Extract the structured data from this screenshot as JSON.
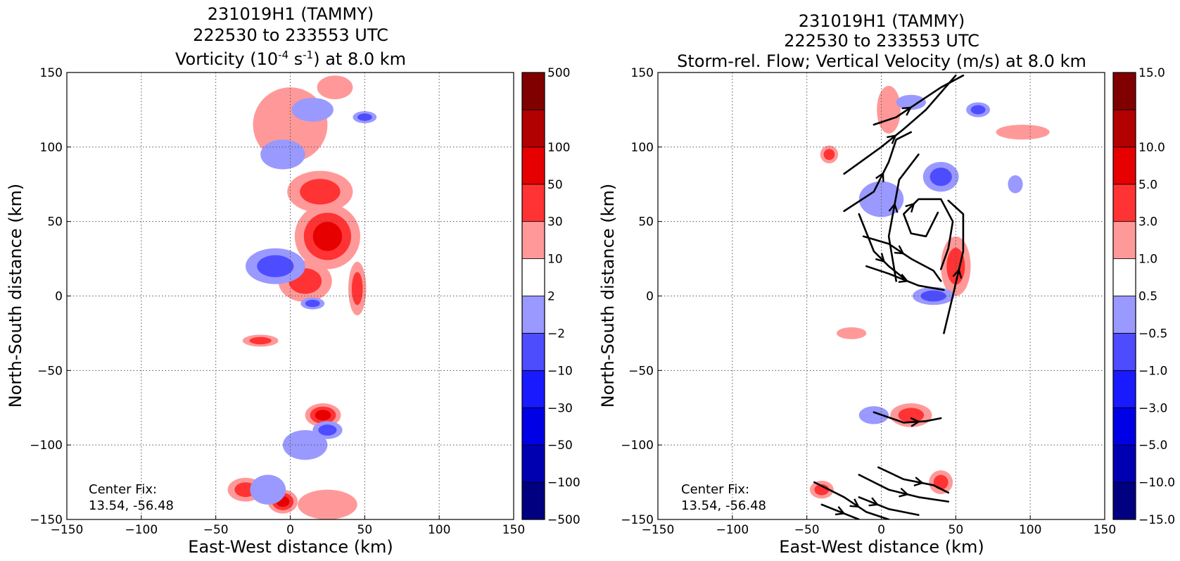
{
  "chart_data": [
    {
      "type": "heatmap",
      "title_lines": [
        "231019H1 (TAMMY)",
        "222530 to 233553 UTC"
      ],
      "title_line3": {
        "prefix": "Vorticity (10",
        "exp1": "-4",
        "mid": " s",
        "exp2": "-1",
        "suffix": ") at 8.0 km"
      },
      "xlabel": "East-West distance (km)",
      "ylabel": "North-South distance (km)",
      "xlim": [
        -150,
        150
      ],
      "ylim": [
        -150,
        150
      ],
      "xticks": [
        "−150",
        "−100",
        "−50",
        "0",
        "50",
        "100",
        "150"
      ],
      "yticks": [
        "−150",
        "−100",
        "−50",
        "0",
        "50",
        "100",
        "150"
      ],
      "grid": true,
      "annotation": [
        "Center Fix:",
        "13.54, -56.48"
      ],
      "colorbar": {
        "boundaries": [
          "−500",
          "−100",
          "−50",
          "−30",
          "−10",
          "−2",
          "2",
          "10",
          "30",
          "50",
          "100",
          "500"
        ],
        "colors": [
          "#000080",
          "#0000b3",
          "#0000e6",
          "#1a1aff",
          "#4d4dff",
          "#9999ff",
          "#ffffff",
          "#ff9999",
          "#ff3333",
          "#e60000",
          "#b30000",
          "#800000"
        ]
      },
      "field": {
        "positive_regions": [
          {
            "x": 25,
            "y": 40,
            "rx": 22,
            "ry": 22,
            "level": 3
          },
          {
            "x": 10,
            "y": 10,
            "rx": 18,
            "ry": 14,
            "level": 2
          },
          {
            "x": 20,
            "y": 70,
            "rx": 22,
            "ry": 14,
            "level": 2
          },
          {
            "x": 0,
            "y": 115,
            "rx": 25,
            "ry": 25,
            "level": 1
          },
          {
            "x": 30,
            "y": 140,
            "rx": 12,
            "ry": 8,
            "level": 1
          },
          {
            "x": 22,
            "y": -80,
            "rx": 12,
            "ry": 8,
            "level": 3
          },
          {
            "x": -20,
            "y": -30,
            "rx": 12,
            "ry": 4,
            "level": 2
          },
          {
            "x": -5,
            "y": -138,
            "rx": 10,
            "ry": 8,
            "level": 3
          },
          {
            "x": -30,
            "y": -130,
            "rx": 12,
            "ry": 8,
            "level": 2
          },
          {
            "x": 25,
            "y": -140,
            "rx": 20,
            "ry": 10,
            "level": 1
          },
          {
            "x": 45,
            "y": 5,
            "rx": 6,
            "ry": 18,
            "level": 2
          }
        ],
        "negative_regions": [
          {
            "x": -10,
            "y": 20,
            "rx": 20,
            "ry": 12,
            "level": 2
          },
          {
            "x": 15,
            "y": 125,
            "rx": 14,
            "ry": 8,
            "level": 1
          },
          {
            "x": -5,
            "y": 95,
            "rx": 15,
            "ry": 10,
            "level": 1
          },
          {
            "x": 50,
            "y": 120,
            "rx": 8,
            "ry": 4,
            "level": 2
          },
          {
            "x": 25,
            "y": -90,
            "rx": 10,
            "ry": 6,
            "level": 2
          },
          {
            "x": 10,
            "y": -100,
            "rx": 15,
            "ry": 10,
            "level": 1
          },
          {
            "x": -15,
            "y": -130,
            "rx": 12,
            "ry": 10,
            "level": 1
          },
          {
            "x": 15,
            "y": -5,
            "rx": 8,
            "ry": 4,
            "level": 2
          }
        ]
      }
    },
    {
      "type": "heatmap",
      "title_lines": [
        "231019H1 (TAMMY)",
        "222530 to 233553 UTC",
        "Storm-rel. Flow; Vertical Velocity (m/s) at 8.0 km"
      ],
      "xlabel": "East-West distance (km)",
      "ylabel": "North-South distance (km)",
      "xlim": [
        -150,
        150
      ],
      "ylim": [
        -150,
        150
      ],
      "xticks": [
        "−150",
        "−100",
        "−50",
        "0",
        "50",
        "100",
        "150"
      ],
      "yticks": [
        "−150",
        "−100",
        "−50",
        "0",
        "50",
        "100",
        "150"
      ],
      "grid": true,
      "annotation": [
        "Center Fix:",
        "13.54, -56.48"
      ],
      "colorbar": {
        "boundaries": [
          "−15.0",
          "−10.0",
          "−5.0",
          "−3.0",
          "−1.0",
          "−0.5",
          "0.5",
          "1.0",
          "3.0",
          "5.0",
          "10.0",
          "15.0"
        ],
        "colors": [
          "#000080",
          "#0000b3",
          "#0000e6",
          "#1a1aff",
          "#4d4dff",
          "#9999ff",
          "#ffffff",
          "#ff9999",
          "#ff3333",
          "#e60000",
          "#b30000",
          "#800000"
        ]
      },
      "field": {
        "positive_regions": [
          {
            "x": 50,
            "y": 20,
            "rx": 10,
            "ry": 20,
            "level": 2
          },
          {
            "x": 20,
            "y": -80,
            "rx": 14,
            "ry": 8,
            "level": 2
          },
          {
            "x": 5,
            "y": 125,
            "rx": 8,
            "ry": 16,
            "level": 1
          },
          {
            "x": 95,
            "y": 110,
            "rx": 18,
            "ry": 5,
            "level": 1
          },
          {
            "x": -40,
            "y": -130,
            "rx": 8,
            "ry": 6,
            "level": 2
          },
          {
            "x": 40,
            "y": -125,
            "rx": 8,
            "ry": 8,
            "level": 2
          },
          {
            "x": -20,
            "y": -25,
            "rx": 10,
            "ry": 4,
            "level": 1
          },
          {
            "x": -35,
            "y": 95,
            "rx": 6,
            "ry": 6,
            "level": 2
          }
        ],
        "negative_regions": [
          {
            "x": 40,
            "y": 80,
            "rx": 12,
            "ry": 10,
            "level": 2
          },
          {
            "x": 35,
            "y": 0,
            "rx": 14,
            "ry": 6,
            "level": 2
          },
          {
            "x": 0,
            "y": 65,
            "rx": 15,
            "ry": 12,
            "level": 1
          },
          {
            "x": -5,
            "y": -80,
            "rx": 10,
            "ry": 6,
            "level": 1
          },
          {
            "x": 65,
            "y": 125,
            "rx": 8,
            "ry": 5,
            "level": 2
          },
          {
            "x": 90,
            "y": 75,
            "rx": 5,
            "ry": 6,
            "level": 1
          },
          {
            "x": 20,
            "y": 130,
            "rx": 10,
            "ry": 5,
            "level": 1
          }
        ]
      },
      "streamlines": [
        [
          [
            -5,
            115
          ],
          [
            10,
            120
          ],
          [
            25,
            130
          ],
          [
            40,
            140
          ],
          [
            55,
            148
          ]
        ],
        [
          [
            -25,
            82
          ],
          [
            0,
            100
          ],
          [
            15,
            112
          ],
          [
            30,
            125
          ],
          [
            50,
            148
          ]
        ],
        [
          [
            -25,
            57
          ],
          [
            -5,
            70
          ],
          [
            5,
            90
          ],
          [
            10,
            105
          ],
          [
            20,
            110
          ]
        ],
        [
          [
            -12,
            40
          ],
          [
            5,
            35
          ],
          [
            20,
            25
          ],
          [
            35,
            17
          ],
          [
            40,
            10
          ]
        ],
        [
          [
            -15,
            55
          ],
          [
            -5,
            30
          ],
          [
            5,
            20
          ],
          [
            15,
            12
          ]
        ],
        [
          [
            -10,
            20
          ],
          [
            5,
            15
          ],
          [
            25,
            7
          ],
          [
            42,
            4
          ]
        ],
        [
          [
            38,
            56
          ],
          [
            30,
            40
          ],
          [
            20,
            42
          ],
          [
            15,
            55
          ],
          [
            25,
            65
          ],
          [
            40,
            65
          ],
          [
            48,
            50
          ],
          [
            45,
            32
          ],
          [
            40,
            18
          ]
        ],
        [
          [
            10,
            10
          ],
          [
            5,
            40
          ],
          [
            12,
            78
          ],
          [
            25,
            95
          ]
        ],
        [
          [
            42,
            -25
          ],
          [
            48,
            0
          ],
          [
            55,
            30
          ],
          [
            55,
            55
          ],
          [
            45,
            64
          ]
        ],
        [
          [
            -5,
            -78
          ],
          [
            15,
            -85
          ],
          [
            30,
            -84
          ],
          [
            40,
            -82
          ]
        ],
        [
          [
            -45,
            -125
          ],
          [
            -25,
            -135
          ],
          [
            -10,
            -145
          ],
          [
            5,
            -150
          ]
        ],
        [
          [
            -15,
            -120
          ],
          [
            5,
            -130
          ],
          [
            25,
            -135
          ],
          [
            45,
            -138
          ]
        ],
        [
          [
            -2,
            -115
          ],
          [
            15,
            -123
          ],
          [
            35,
            -127
          ],
          [
            45,
            -132
          ]
        ],
        [
          [
            -40,
            -140
          ],
          [
            -15,
            -150
          ]
        ],
        [
          [
            -15,
            -135
          ],
          [
            5,
            -143
          ],
          [
            25,
            -147
          ]
        ]
      ]
    }
  ]
}
